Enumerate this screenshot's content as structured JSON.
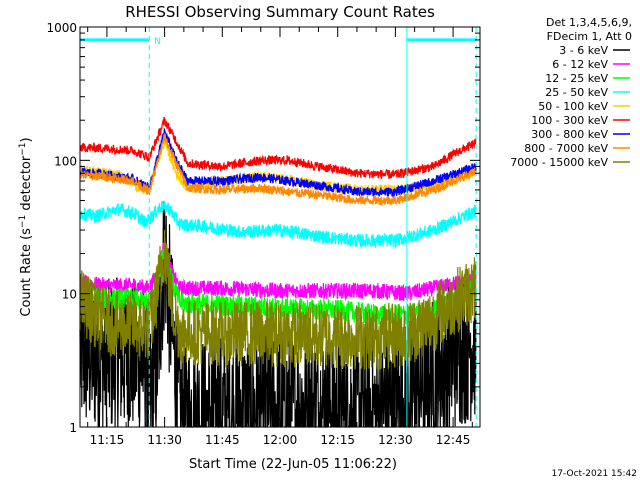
{
  "chart_data": {
    "type": "line",
    "title": "RHESSI Observing Summary Count Rates",
    "xlabel": "Start Time (22-Jun-05 11:06:22)",
    "ylabel": "Count Rate (s⁻¹ detector⁻¹)",
    "ylabel_parts": {
      "base": "Count Rate (s",
      "exp": "−1",
      "mid": " detector",
      "exp2": "−1",
      "end": ")"
    },
    "y_scale": "log",
    "ylim": [
      1,
      1000
    ],
    "y_ticks": [
      {
        "v": 1,
        "label": "1"
      },
      {
        "v": 10,
        "label": "10"
      },
      {
        "v": 100,
        "label": "100"
      },
      {
        "v": 1000,
        "label": "1000"
      }
    ],
    "xlim_min": [
      8,
      112
    ],
    "x_ticks": [
      {
        "t": 15,
        "label": "11:15"
      },
      {
        "t": 30,
        "label": "11:30"
      },
      {
        "t": 45,
        "label": "11:45"
      },
      {
        "t": 60,
        "label": "12:00"
      },
      {
        "t": 75,
        "label": "12:15"
      },
      {
        "t": 90,
        "label": "12:30"
      },
      {
        "t": 105,
        "label": "12:45"
      }
    ],
    "legend_position": "top-right",
    "legend_header": [
      "Det 1,3,4,5,6,9,",
      "FDecim 1, Att 0"
    ],
    "footer_date": "17-Oct-2021 15:42",
    "night_flag": {
      "label": "N",
      "level": 800,
      "segments": [
        [
          8,
          26
        ],
        [
          93,
          111
        ]
      ]
    },
    "dashed_markers": [
      26,
      111
    ],
    "solid_markers": [
      8,
      93
    ],
    "series": [
      {
        "name": "3 - 6 keV",
        "color": "#000000",
        "points": [
          [
            8,
            3.5
          ],
          [
            15,
            3.3
          ],
          [
            22,
            3.4
          ],
          [
            25,
            3.0
          ],
          [
            26,
            1.5
          ],
          [
            28,
            3
          ],
          [
            30,
            22
          ],
          [
            32,
            5
          ],
          [
            34,
            1.2
          ],
          [
            45,
            1.3
          ],
          [
            60,
            1.4
          ],
          [
            75,
            1.4
          ],
          [
            85,
            1.3
          ],
          [
            93,
            1.6
          ],
          [
            100,
            2.5
          ],
          [
            106,
            3.8
          ],
          [
            111,
            4.4
          ]
        ],
        "noise": 0.6
      },
      {
        "name": "6 - 12 keV",
        "color": "#ff00ff",
        "points": [
          [
            8,
            12
          ],
          [
            15,
            11.5
          ],
          [
            22,
            11.5
          ],
          [
            26,
            11
          ],
          [
            28,
            14
          ],
          [
            30,
            24
          ],
          [
            32,
            14
          ],
          [
            34,
            11
          ],
          [
            45,
            11
          ],
          [
            60,
            10.5
          ],
          [
            75,
            10.5
          ],
          [
            85,
            10.5
          ],
          [
            93,
            10
          ],
          [
            100,
            11
          ],
          [
            106,
            12
          ],
          [
            111,
            12.5
          ]
        ],
        "noise": 0.06
      },
      {
        "name": "12 - 25 keV",
        "color": "#00ff00",
        "points": [
          [
            8,
            9.5
          ],
          [
            15,
            9.2
          ],
          [
            22,
            9
          ],
          [
            26,
            8.5
          ],
          [
            28,
            12
          ],
          [
            30,
            23
          ],
          [
            32,
            12
          ],
          [
            34,
            8.5
          ],
          [
            45,
            8.2
          ],
          [
            60,
            7.8
          ],
          [
            75,
            7.5
          ],
          [
            85,
            7
          ],
          [
            93,
            7
          ],
          [
            100,
            7.5
          ],
          [
            106,
            9.5
          ],
          [
            111,
            11
          ]
        ],
        "noise": 0.08
      },
      {
        "name": "25 - 50 keV",
        "color": "#00ffff",
        "points": [
          [
            8,
            40
          ],
          [
            12,
            38
          ],
          [
            18,
            43
          ],
          [
            22,
            40
          ],
          [
            25,
            34
          ],
          [
            29,
            45
          ],
          [
            31,
            44
          ],
          [
            34,
            33
          ],
          [
            40,
            32
          ],
          [
            50,
            29
          ],
          [
            60,
            30
          ],
          [
            70,
            27
          ],
          [
            80,
            25
          ],
          [
            90,
            25
          ],
          [
            100,
            30
          ],
          [
            106,
            36
          ],
          [
            111,
            42
          ]
        ],
        "noise": 0.05
      },
      {
        "name": "50 - 100 keV",
        "color": "#ffcc00",
        "points": [
          [
            8,
            85
          ],
          [
            15,
            80
          ],
          [
            20,
            75
          ],
          [
            24,
            60
          ],
          [
            26,
            62
          ],
          [
            30,
            140
          ],
          [
            33,
            80
          ],
          [
            36,
            62
          ],
          [
            45,
            70
          ],
          [
            55,
            75
          ],
          [
            60,
            73
          ],
          [
            70,
            65
          ],
          [
            80,
            60
          ],
          [
            90,
            60
          ],
          [
            100,
            65
          ],
          [
            106,
            72
          ],
          [
            111,
            82
          ]
        ],
        "noise": 0.04
      },
      {
        "name": "100 - 300 keV",
        "color": "#ff0000",
        "points": [
          [
            8,
            125
          ],
          [
            15,
            123
          ],
          [
            22,
            118
          ],
          [
            26,
            105
          ],
          [
            30,
            200
          ],
          [
            33,
            140
          ],
          [
            36,
            95
          ],
          [
            45,
            90
          ],
          [
            55,
            100
          ],
          [
            62,
            100
          ],
          [
            70,
            90
          ],
          [
            80,
            80
          ],
          [
            90,
            78
          ],
          [
            100,
            90
          ],
          [
            106,
            115
          ],
          [
            111,
            135
          ]
        ],
        "noise": 0.035
      },
      {
        "name": "300 - 800 keV",
        "color": "#0000ff",
        "points": [
          [
            8,
            82
          ],
          [
            15,
            78
          ],
          [
            22,
            72
          ],
          [
            26,
            62
          ],
          [
            30,
            165
          ],
          [
            33,
            100
          ],
          [
            36,
            70
          ],
          [
            45,
            70
          ],
          [
            55,
            75
          ],
          [
            62,
            70
          ],
          [
            70,
            65
          ],
          [
            80,
            58
          ],
          [
            90,
            58
          ],
          [
            100,
            70
          ],
          [
            106,
            80
          ],
          [
            111,
            90
          ]
        ],
        "noise": 0.035
      },
      {
        "name": "800 - 7000 keV",
        "color": "#ff8800",
        "points": [
          [
            8,
            78
          ],
          [
            15,
            75
          ],
          [
            22,
            70
          ],
          [
            26,
            58
          ],
          [
            30,
            150
          ],
          [
            33,
            95
          ],
          [
            36,
            62
          ],
          [
            45,
            60
          ],
          [
            55,
            62
          ],
          [
            62,
            58
          ],
          [
            70,
            55
          ],
          [
            80,
            50
          ],
          [
            90,
            50
          ],
          [
            100,
            60
          ],
          [
            106,
            72
          ],
          [
            111,
            82
          ]
        ],
        "noise": 0.035
      },
      {
        "name": "7000 - 15000 keV",
        "color": "#808000",
        "points": [
          [
            8,
            9
          ],
          [
            12,
            7
          ],
          [
            16,
            6
          ],
          [
            20,
            5.8
          ],
          [
            26,
            5.5
          ],
          [
            28,
            10
          ],
          [
            30,
            23
          ],
          [
            32,
            8
          ],
          [
            34,
            5.2
          ],
          [
            45,
            5
          ],
          [
            60,
            5
          ],
          [
            75,
            4.8
          ],
          [
            85,
            4.7
          ],
          [
            93,
            5
          ],
          [
            100,
            6.5
          ],
          [
            106,
            9
          ],
          [
            111,
            11
          ]
        ],
        "noise": 0.25
      }
    ]
  }
}
